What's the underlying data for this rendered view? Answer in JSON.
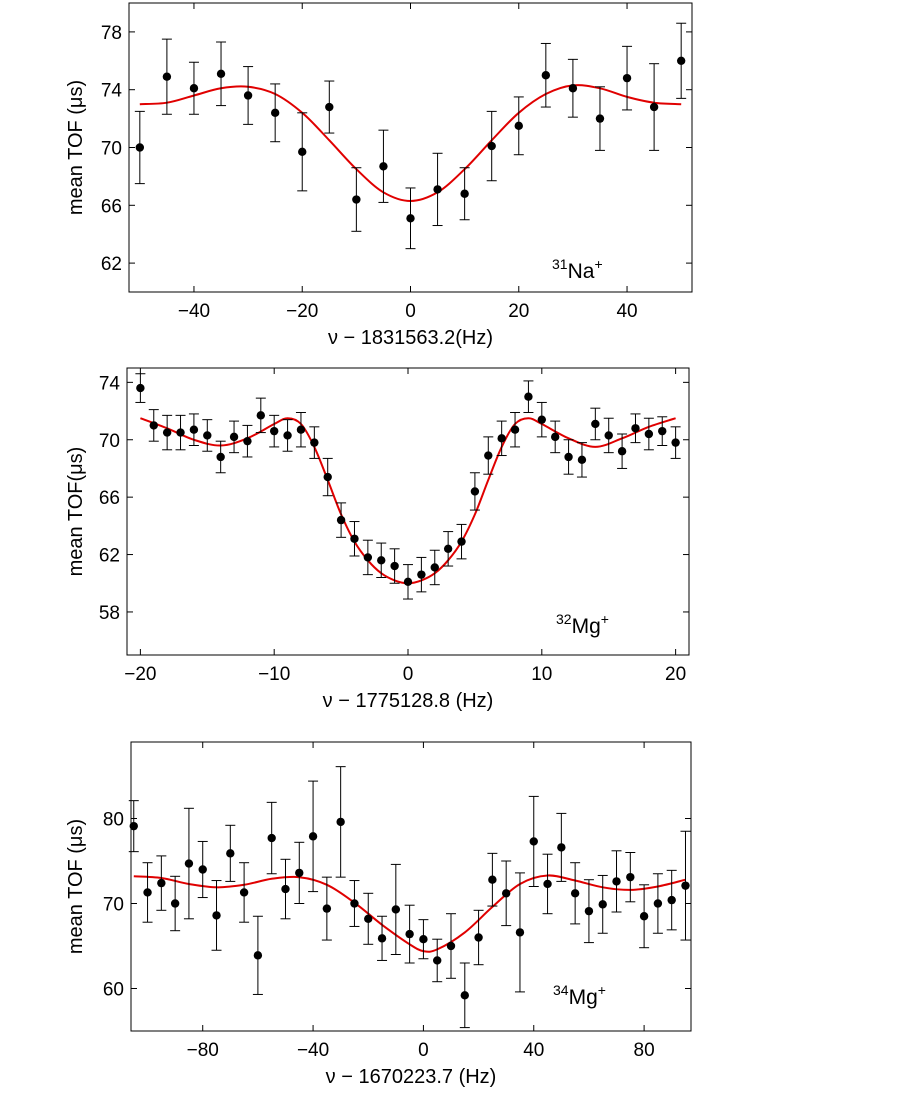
{
  "chart_data": [
    {
      "type": "scatter",
      "panel": "top",
      "annotation": {
        "mass": "31",
        "element": "Na",
        "charge": "+"
      },
      "xlabel": "ν − 1831563.2(Hz)",
      "ylabel": "mean TOF (μs)",
      "xlim": [
        -52,
        52
      ],
      "ylim": [
        60,
        80
      ],
      "xticks": [
        -40,
        -20,
        0,
        20,
        40
      ],
      "xtick_labels": [
        "−40",
        "−20",
        "0",
        "20",
        "40"
      ],
      "yticks": [
        62,
        66,
        70,
        74,
        78
      ],
      "ytick_labels": [
        "62",
        "66",
        "70",
        "74",
        "78"
      ],
      "series": [
        {
          "name": "data",
          "x": [
            -50,
            -45,
            -40,
            -35,
            -30,
            -25,
            -20,
            -15,
            -10,
            -5,
            0,
            5,
            10,
            15,
            20,
            25,
            30,
            35,
            40,
            45,
            50
          ],
          "y": [
            70.0,
            74.9,
            74.1,
            75.1,
            73.6,
            72.4,
            69.7,
            72.8,
            66.4,
            68.7,
            65.1,
            67.1,
            66.8,
            70.1,
            71.5,
            75.0,
            74.1,
            72.0,
            74.8,
            72.8,
            76.0
          ],
          "err": [
            2.5,
            2.6,
            1.8,
            2.2,
            2.0,
            2.0,
            2.7,
            1.8,
            2.2,
            2.5,
            2.1,
            2.5,
            1.8,
            2.4,
            2.0,
            2.2,
            2.0,
            2.2,
            2.2,
            3.0,
            2.6
          ]
        },
        {
          "name": "fit",
          "color": "#e00000",
          "x": [
            -50,
            -45,
            -40,
            -35,
            -30,
            -25,
            -20,
            -15,
            -10,
            -5,
            0,
            5,
            10,
            15,
            20,
            25,
            30,
            35,
            40,
            45,
            50
          ],
          "y": [
            73.0,
            73.1,
            73.6,
            74.1,
            74.2,
            73.7,
            72.4,
            70.5,
            68.5,
            66.9,
            66.3,
            66.9,
            68.5,
            70.5,
            72.4,
            73.7,
            74.3,
            74.1,
            73.5,
            73.1,
            73.0
          ]
        }
      ]
    },
    {
      "type": "scatter",
      "panel": "middle",
      "annotation": {
        "mass": "32",
        "element": "Mg",
        "charge": "+"
      },
      "xlabel": "ν − 1775128.8 (Hz)",
      "ylabel": "mean TOF(μs)",
      "xlim": [
        -21,
        21
      ],
      "ylim": [
        55,
        75
      ],
      "xticks": [
        -20,
        -10,
        0,
        10,
        20
      ],
      "xtick_labels": [
        "−20",
        "−10",
        "0",
        "10",
        "20"
      ],
      "yticks": [
        58,
        62,
        66,
        70,
        74
      ],
      "ytick_labels": [
        "58",
        "62",
        "66",
        "70",
        "74"
      ],
      "series": [
        {
          "name": "data",
          "x": [
            -20,
            -19,
            -18,
            -17,
            -16,
            -15,
            -14,
            -13,
            -12,
            -11,
            -10,
            -9,
            -8,
            -7,
            -6,
            -5,
            -4,
            -3,
            -2,
            -1,
            0,
            1,
            2,
            3,
            4,
            5,
            6,
            7,
            8,
            9,
            10,
            11,
            12,
            13,
            14,
            15,
            16,
            17,
            18,
            19,
            20
          ],
          "y": [
            73.6,
            71.0,
            70.5,
            70.5,
            70.7,
            70.3,
            68.8,
            70.2,
            69.9,
            71.7,
            70.6,
            70.3,
            70.7,
            69.8,
            67.4,
            64.4,
            63.1,
            61.8,
            61.6,
            61.2,
            60.1,
            60.6,
            61.1,
            62.4,
            62.9,
            66.4,
            68.9,
            70.1,
            70.7,
            73.0,
            71.4,
            70.2,
            68.8,
            68.6,
            71.1,
            70.3,
            69.2,
            70.8,
            70.4,
            70.6,
            69.8
          ],
          "err": [
            1.0,
            1.1,
            1.2,
            1.2,
            1.1,
            1.1,
            1.1,
            1.1,
            1.1,
            1.2,
            1.1,
            1.1,
            1.2,
            1.1,
            1.3,
            1.2,
            1.2,
            1.2,
            1.2,
            1.2,
            1.2,
            1.2,
            1.2,
            1.2,
            1.2,
            1.3,
            1.3,
            1.2,
            1.2,
            1.1,
            1.2,
            1.1,
            1.2,
            1.2,
            1.1,
            1.2,
            1.2,
            1.0,
            1.1,
            1.0,
            1.1
          ]
        },
        {
          "name": "fit",
          "color": "#e00000",
          "x": [
            -20,
            -18,
            -16,
            -14,
            -12,
            -10,
            -9,
            -8,
            -7,
            -6,
            -5,
            -4,
            -3,
            -2,
            -1,
            0,
            1,
            2,
            3,
            4,
            5,
            6,
            7,
            8,
            9,
            10,
            12,
            14,
            16,
            18,
            20
          ],
          "y": [
            71.5,
            70.8,
            70.0,
            69.6,
            70.1,
            71.1,
            71.5,
            71.1,
            69.5,
            67.2,
            64.8,
            62.9,
            61.6,
            60.7,
            60.2,
            60.0,
            60.2,
            60.7,
            61.6,
            62.9,
            64.8,
            67.2,
            69.5,
            71.1,
            71.5,
            71.1,
            70.1,
            69.5,
            70.1,
            70.9,
            71.5
          ]
        }
      ]
    },
    {
      "type": "scatter",
      "panel": "bottom",
      "annotation": {
        "mass": "34",
        "element": "Mg",
        "charge": "+"
      },
      "xlabel": "ν − 1670223.7 (Hz)",
      "ylabel": "mean TOF (μs)",
      "xlim": [
        -106,
        97
      ],
      "ylim": [
        55,
        89
      ],
      "xticks": [
        -80,
        -40,
        0,
        40,
        80
      ],
      "xtick_labels": [
        "−80",
        "−40",
        "0",
        "40",
        "80"
      ],
      "yticks": [
        60,
        70,
        80
      ],
      "ytick_labels": [
        "60",
        "70",
        "80"
      ],
      "series": [
        {
          "name": "data",
          "x": [
            -105,
            -100,
            -95,
            -90,
            -85,
            -80,
            -75,
            -70,
            -65,
            -60,
            -55,
            -50,
            -45,
            -40,
            -35,
            -30,
            -25,
            -20,
            -15,
            -10,
            -5,
            0,
            5,
            10,
            15,
            20,
            25,
            30,
            35,
            40,
            45,
            50,
            55,
            60,
            65,
            70,
            75,
            80,
            85,
            90,
            95
          ],
          "y": [
            79.1,
            71.3,
            72.4,
            70.0,
            74.7,
            74.0,
            68.6,
            75.9,
            71.3,
            63.9,
            77.7,
            71.7,
            73.6,
            77.9,
            69.4,
            79.6,
            70.0,
            68.2,
            65.9,
            69.3,
            66.4,
            65.8,
            63.3,
            65.0,
            59.2,
            66.0,
            72.8,
            71.2,
            66.6,
            77.3,
            72.3,
            76.6,
            71.2,
            69.1,
            69.9,
            72.6,
            73.1,
            68.5,
            70.0,
            70.4,
            72.1
          ],
          "err": [
            3.0,
            3.5,
            3.2,
            3.2,
            6.5,
            3.3,
            4.1,
            3.3,
            3.5,
            4.6,
            4.2,
            3.5,
            3.6,
            6.5,
            3.7,
            6.5,
            2.7,
            3.0,
            2.6,
            5.3,
            3.4,
            2.3,
            2.5,
            3.8,
            3.8,
            3.2,
            3.1,
            3.8,
            7.0,
            5.3,
            3.5,
            4.0,
            3.6,
            3.7,
            3.4,
            3.6,
            2.9,
            3.7,
            3.5,
            3.5,
            6.4
          ]
        },
        {
          "name": "fit",
          "color": "#e00000",
          "x": [
            -105,
            -95,
            -85,
            -75,
            -65,
            -55,
            -45,
            -35,
            -25,
            -15,
            -5,
            0,
            5,
            15,
            25,
            35,
            45,
            55,
            65,
            75,
            85,
            95
          ],
          "y": [
            73.2,
            73.0,
            72.3,
            71.9,
            72.2,
            72.9,
            73.1,
            72.2,
            70.1,
            67.5,
            65.2,
            64.4,
            64.6,
            66.6,
            69.6,
            72.3,
            73.3,
            72.7,
            71.9,
            71.6,
            72.0,
            72.8
          ]
        }
      ]
    }
  ]
}
